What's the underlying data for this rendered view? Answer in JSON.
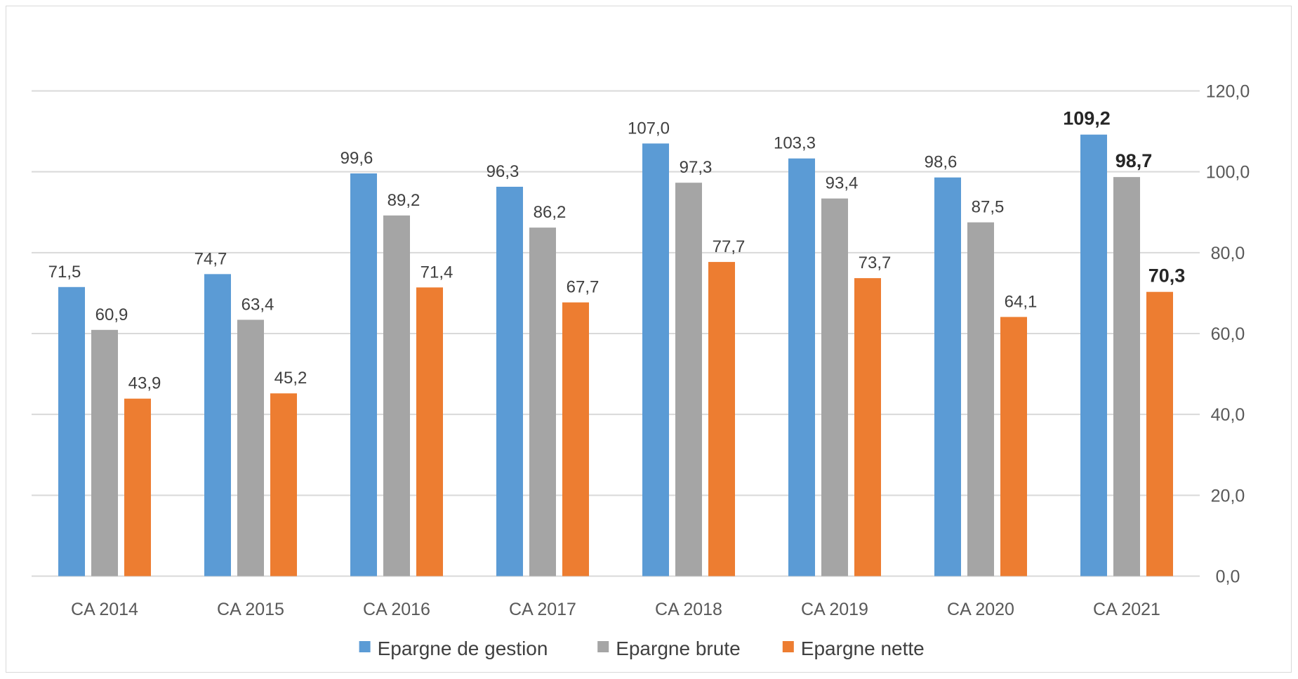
{
  "chart_data": {
    "type": "bar",
    "categories": [
      "CA 2014",
      "CA 2015",
      "CA 2016",
      "CA 2017",
      "CA 2018",
      "CA 2019",
      "CA 2020",
      "CA 2021"
    ],
    "series": [
      {
        "name": "Epargne de gestion",
        "color": "#5b9bd5",
        "values": [
          71.5,
          74.7,
          99.6,
          96.3,
          107.0,
          103.3,
          98.6,
          109.2
        ],
        "labels": [
          "71,5",
          "74,7",
          "99,6",
          "96,3",
          "107,0",
          "103,3",
          "98,6",
          "109,2"
        ]
      },
      {
        "name": "Epargne brute",
        "color": "#a5a5a5",
        "values": [
          60.9,
          63.4,
          89.2,
          86.2,
          97.3,
          93.4,
          87.5,
          98.7
        ],
        "labels": [
          "60,9",
          "63,4",
          "89,2",
          "86,2",
          "97,3",
          "93,4",
          "87,5",
          "98,7"
        ]
      },
      {
        "name": "Epargne nette",
        "color": "#ed7d31",
        "values": [
          43.9,
          45.2,
          71.4,
          67.7,
          77.7,
          73.7,
          64.1,
          70.3
        ],
        "labels": [
          "43,9",
          "45,2",
          "71,4",
          "67,7",
          "77,7",
          "73,7",
          "64,1",
          "70,3"
        ]
      }
    ],
    "bold_labels_category": "CA 2021",
    "y_axis": {
      "position": "right",
      "ylim": [
        0,
        120
      ],
      "ticks": [
        0,
        20,
        40,
        60,
        80,
        100,
        120
      ],
      "tick_labels": [
        "0,0",
        "20,0",
        "40,0",
        "60,0",
        "80,0",
        "100,0",
        "120,0"
      ]
    },
    "grid": true,
    "legend": "bottom",
    "title": "",
    "xlabel": "",
    "ylabel": ""
  }
}
